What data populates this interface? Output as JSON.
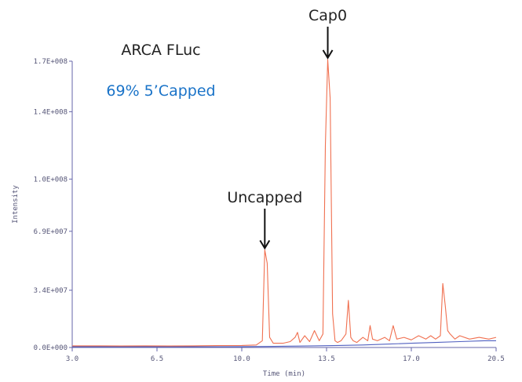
{
  "chart_data": {
    "type": "line",
    "title": "ARCA FLuc",
    "subtitle": "69% 5’Capped",
    "xlabel": "Time (min)",
    "ylabel": "Intensity",
    "xlim": [
      3.0,
      20.5
    ],
    "ylim": [
      0,
      170000000
    ],
    "xticks": [
      3.0,
      6.5,
      10.0,
      13.5,
      17.0,
      20.5
    ],
    "xtick_labels": [
      "3.0",
      "6.5",
      "10.0",
      "13.5",
      "17.0",
      "20.5"
    ],
    "yticks": [
      0,
      34000000,
      69000000,
      100000000,
      140000000,
      170000000
    ],
    "ytick_labels": [
      "0.0E+000",
      "3.4E+007",
      "6.9E+007",
      "1.0E+008",
      "1.4E+008",
      "1.7E+008"
    ],
    "grid": false,
    "colors": {
      "trace": "#f07050",
      "baseline": "#5060c0",
      "axis": "#6666aa",
      "subtitle": "#1a73c8"
    },
    "series": [
      {
        "color": "#f07050",
        "x": [
          3.0,
          4.0,
          5.0,
          6.0,
          7.0,
          8.0,
          9.0,
          10.0,
          10.6,
          10.85,
          10.95,
          11.05,
          11.15,
          11.3,
          11.7,
          12.0,
          12.2,
          12.3,
          12.4,
          12.6,
          12.8,
          13.0,
          13.2,
          13.35,
          13.45,
          13.55,
          13.65,
          13.75,
          13.85,
          13.95,
          14.1,
          14.3,
          14.4,
          14.5,
          14.6,
          14.75,
          15.0,
          15.2,
          15.3,
          15.4,
          15.6,
          15.9,
          16.1,
          16.25,
          16.4,
          16.7,
          17.0,
          17.3,
          17.6,
          17.8,
          18.0,
          18.2,
          18.3,
          18.4,
          18.5,
          18.6,
          18.8,
          19.0,
          19.4,
          19.8,
          20.2,
          20.5
        ],
        "y": [
          1000000,
          1000000,
          900000,
          1000000,
          900000,
          1000000,
          1100000,
          1200000,
          1500000,
          4000000,
          58000000,
          50000000,
          6000000,
          2500000,
          2500000,
          3500000,
          6000000,
          9000000,
          3000000,
          7000000,
          3500000,
          10000000,
          4000000,
          8000000,
          120000000,
          171000000,
          148000000,
          20000000,
          4000000,
          3000000,
          4000000,
          8000000,
          28000000,
          6000000,
          4000000,
          3000000,
          6000000,
          4000000,
          13000000,
          5000000,
          4000000,
          6000000,
          4000000,
          13000000,
          5000000,
          6000000,
          4500000,
          7000000,
          5000000,
          7000000,
          5000000,
          7000000,
          38000000,
          25000000,
          10000000,
          8000000,
          5000000,
          7000000,
          5000000,
          6000000,
          5000000,
          6000000
        ]
      },
      {
        "color": "#5060c0",
        "x": [
          3.0,
          5.0,
          7.0,
          9.0,
          10.0,
          11.0,
          12.0,
          13.0,
          14.0,
          15.0,
          16.0,
          17.0,
          18.0,
          19.0,
          20.0,
          20.5
        ],
        "y": [
          500000,
          400000,
          500000,
          400000,
          500000,
          600000,
          800000,
          1000000,
          1200000,
          1500000,
          2000000,
          2500000,
          3000000,
          3500000,
          4000000,
          4000000
        ]
      }
    ],
    "annotations": [
      {
        "text": "Cap0",
        "x": 13.55,
        "y": 171000000
      },
      {
        "text": "Uncapped",
        "x": 10.95,
        "y": 58000000
      }
    ]
  }
}
